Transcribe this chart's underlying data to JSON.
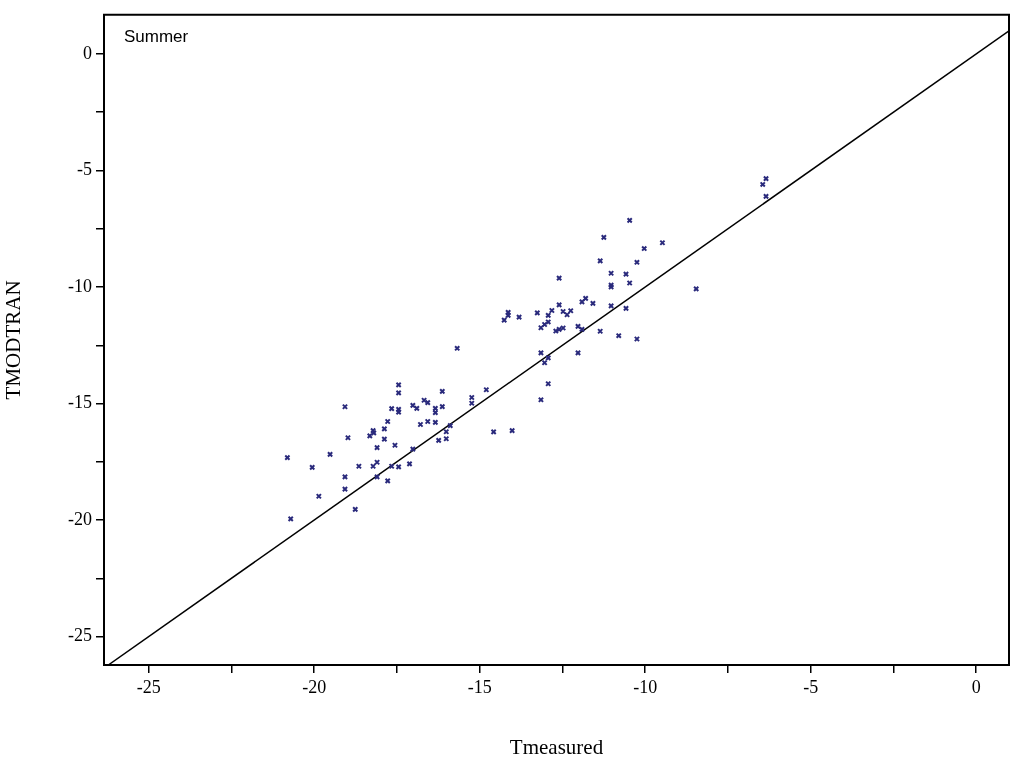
{
  "chart_data": {
    "type": "scatter",
    "xlabel": "Tmeasured",
    "ylabel": "TMODTRAN",
    "annotations": [
      "Summer"
    ],
    "xlim": [
      -26.35,
      0.99
    ],
    "ylim": [
      -26.22,
      1.68
    ],
    "xticks": [
      -25,
      {
        "value": -22.5,
        "label": null
      },
      -20,
      {
        "value": -17.5,
        "label": null
      },
      -15,
      {
        "value": -12.5,
        "label": null
      },
      -10,
      {
        "value": -7.5,
        "label": null
      },
      -5,
      {
        "value": -2.5,
        "label": null
      },
      0
    ],
    "yticks": [
      -25,
      {
        "value": -22.5,
        "label": null
      },
      -20,
      {
        "value": -17.5,
        "label": null
      },
      -15,
      {
        "value": -12.5,
        "label": null
      },
      -10,
      {
        "value": -7.5,
        "label": null
      },
      -5,
      {
        "value": -2.5,
        "label": null
      },
      0
    ],
    "grid": false,
    "legend": false,
    "marker": "cross",
    "series": [
      {
        "type": "scatter",
        "color": "#2a2a7c",
        "x": [
          -20.81,
          -20.71,
          -20.06,
          -19.86,
          -19.52,
          -19.07,
          -18.98,
          -19.07,
          -19.07,
          -18.76,
          -18.65,
          -18.32,
          -18.22,
          -18.2,
          -18.1,
          -18.22,
          -18.1,
          -18.1,
          -17.88,
          -17.88,
          -17.78,
          -17.78,
          -17.66,
          -17.56,
          -17.66,
          -17.45,
          -17.45,
          -17.45,
          -17.45,
          -17.45,
          -17.12,
          -17.02,
          -16.9,
          -17.02,
          -16.79,
          -16.68,
          -16.57,
          -16.57,
          -16.34,
          -16.34,
          -16.34,
          -16.13,
          -16.13,
          -16.24,
          -16.01,
          -16.01,
          -15.89,
          -15.68,
          -15.24,
          -15.24,
          -14.8,
          -14.58,
          -14.02,
          -13.15,
          -12.93,
          -13.15,
          -12.93,
          -13.04,
          -12.03,
          -11.36,
          -10.8,
          -10.25,
          -12.03,
          -11.91,
          -13.15,
          -13.04,
          -12.93,
          -12.93,
          -12.82,
          -12.7,
          -12.6,
          -12.48,
          -12.6,
          -12.48,
          -12.36,
          -12.25,
          -13.26,
          -13.81,
          -14.14,
          -14.14,
          -14.26,
          -12.6,
          -11.91,
          -11.8,
          -11.58,
          -11.03,
          -10.58,
          -11.36,
          -11.03,
          -11.03,
          -11.03,
          -10.58,
          -10.47,
          -10.25,
          -10.03,
          -9.48,
          -10.47,
          -11.25,
          -8.46,
          -6.35,
          -6.45,
          -6.35
        ],
        "values": [
          -17.32,
          -19.95,
          -17.74,
          -18.98,
          -17.18,
          -15.14,
          -16.47,
          -18.15,
          -18.67,
          -19.54,
          -17.69,
          -16.39,
          -16.16,
          -16.26,
          -16.89,
          -17.69,
          -17.52,
          -18.15,
          -16.09,
          -16.53,
          -15.77,
          -18.32,
          -15.22,
          -16.79,
          -17.69,
          -14.2,
          -14.54,
          -15.25,
          -15.37,
          -17.72,
          -17.59,
          -15.08,
          -15.21,
          -16.96,
          -15.9,
          -14.86,
          -14.96,
          -15.77,
          -15.21,
          -15.39,
          -15.81,
          -14.48,
          -15.13,
          -16.58,
          -16.21,
          -16.51,
          -15.95,
          -12.63,
          -14.74,
          -14.99,
          -14.41,
          -16.22,
          -16.16,
          -14.84,
          -14.15,
          -12.83,
          -13.04,
          -13.25,
          -12.83,
          -11.9,
          -12.09,
          -12.23,
          -11.69,
          -11.82,
          -11.75,
          -11.61,
          -11.5,
          -11.22,
          -11.01,
          -11.89,
          -11.82,
          -11.76,
          -10.77,
          -11.05,
          -11.19,
          -11.02,
          -11.11,
          -11.29,
          -11.09,
          -11.22,
          -11.42,
          -9.62,
          -10.64,
          -10.49,
          -10.7,
          -10.81,
          -10.92,
          -8.88,
          -9.41,
          -9.92,
          -10,
          -9.45,
          -9.83,
          -8.94,
          -8.35,
          -8.1,
          -7.14,
          -7.87,
          -10.08,
          -5.35,
          -5.6,
          -6.11
        ]
      },
      {
        "type": "line",
        "color": "#000000",
        "marker": "none",
        "x": [
          -26.22,
          0.99
        ],
        "values": [
          -26.22,
          0.99
        ]
      }
    ]
  }
}
